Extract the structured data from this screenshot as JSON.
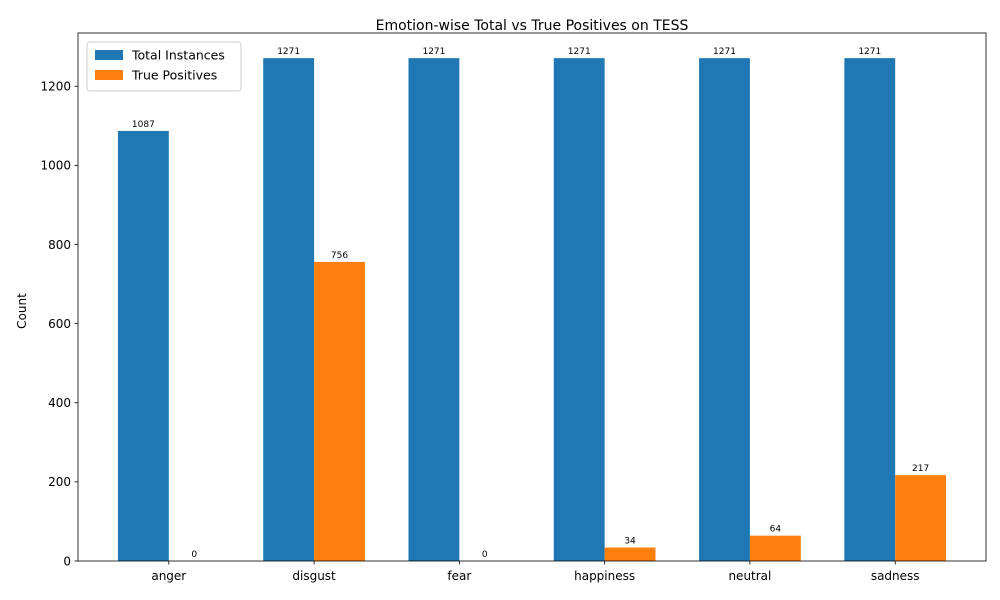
{
  "chart_data": {
    "type": "bar",
    "title": "Emotion-wise Total vs True Positives on TESS",
    "xlabel": "",
    "ylabel": "Count",
    "categories": [
      "anger",
      "disgust",
      "fear",
      "happiness",
      "neutral",
      "sadness"
    ],
    "series": [
      {
        "name": "Total Instances",
        "color": "#1f77b4",
        "values": [
          1087,
          1271,
          1271,
          1271,
          1271,
          1271
        ]
      },
      {
        "name": "True Positives",
        "color": "#ff7f0e",
        "values": [
          0,
          756,
          0,
          34,
          64,
          217
        ]
      }
    ],
    "ylim": [
      0,
      1334.55
    ],
    "yticks": [
      0,
      200,
      400,
      600,
      800,
      1000,
      1200
    ],
    "legend": "top-left",
    "grid": false
  }
}
